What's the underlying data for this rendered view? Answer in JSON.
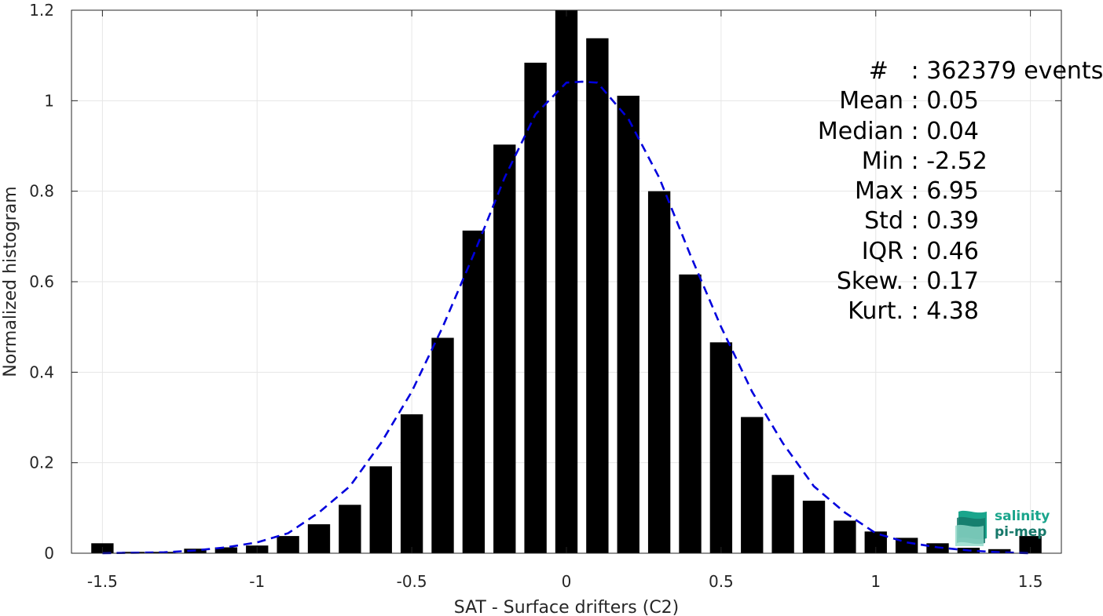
{
  "chart_data": {
    "type": "bar",
    "xlabel": "SAT - Surface drifters (C2)",
    "ylabel": "Normalized histogram",
    "xlim": [
      -1.6,
      1.6
    ],
    "ylim": [
      0,
      1.2
    ],
    "x_ticks": [
      "-1.5",
      "-1",
      "-0.5",
      "0",
      "0.5",
      "1",
      "1.5"
    ],
    "x_tick_values": [
      -1.5,
      -1,
      -0.5,
      0,
      0.5,
      1,
      1.5
    ],
    "y_ticks": [
      "0",
      "0.2",
      "0.4",
      "0.6",
      "0.8",
      "1",
      "1.2"
    ],
    "y_tick_values": [
      0,
      0.2,
      0.4,
      0.6,
      0.8,
      1,
      1.2
    ],
    "grid": true,
    "bars": {
      "color": "#000000",
      "x": [
        -1.5,
        -1.4,
        -1.3,
        -1.2,
        -1.1,
        -1.0,
        -0.9,
        -0.8,
        -0.7,
        -0.6,
        -0.5,
        -0.4,
        -0.3,
        -0.2,
        -0.1,
        0.0,
        0.1,
        0.2,
        0.3,
        0.4,
        0.5,
        0.6,
        0.7,
        0.8,
        0.9,
        1.0,
        1.1,
        1.2,
        1.3,
        1.4,
        1.5
      ],
      "values": [
        0.022,
        0.003,
        0.003,
        0.01,
        0.013,
        0.017,
        0.038,
        0.064,
        0.107,
        0.192,
        0.307,
        0.476,
        0.713,
        0.903,
        1.084,
        1.2,
        1.138,
        1.011,
        0.8,
        0.616,
        0.466,
        0.301,
        0.173,
        0.116,
        0.072,
        0.048,
        0.034,
        0.022,
        0.012,
        0.009,
        0.038
      ]
    },
    "fit": {
      "color": "#0000dd",
      "style": "dashed",
      "x": [
        -1.5,
        -1.4,
        -1.3,
        -1.2,
        -1.1,
        -1.0,
        -0.9,
        -0.8,
        -0.7,
        -0.6,
        -0.5,
        -0.4,
        -0.3,
        -0.2,
        -0.1,
        0.0,
        0.05,
        0.1,
        0.2,
        0.3,
        0.4,
        0.5,
        0.6,
        0.7,
        0.8,
        0.9,
        1.0,
        1.1,
        1.2,
        1.3,
        1.4,
        1.5
      ],
      "values": [
        0.0,
        0.001,
        0.002,
        0.006,
        0.013,
        0.024,
        0.044,
        0.09,
        0.148,
        0.243,
        0.357,
        0.5,
        0.66,
        0.83,
        0.97,
        1.04,
        1.042,
        1.04,
        0.96,
        0.83,
        0.66,
        0.5,
        0.357,
        0.243,
        0.148,
        0.09,
        0.044,
        0.024,
        0.013,
        0.006,
        0.002,
        0.0
      ]
    }
  },
  "stats": [
    {
      "key": "#  ",
      "value": "362379 events"
    },
    {
      "key": "Mean",
      "value": "0.05"
    },
    {
      "key": "Median",
      "value": "0.04"
    },
    {
      "key": "Min",
      "value": "-2.52"
    },
    {
      "key": "Max",
      "value": "6.95"
    },
    {
      "key": "Std",
      "value": "0.39"
    },
    {
      "key": "IQR",
      "value": "0.46"
    },
    {
      "key": "Skew.",
      "value": "0.17"
    },
    {
      "key": "Kurt.",
      "value": "4.38"
    }
  ],
  "logo": {
    "line1": "salinity",
    "line2": "pi-mep",
    "colors": [
      "#1aa58c",
      "#16786a",
      "#8fd8c8"
    ]
  }
}
